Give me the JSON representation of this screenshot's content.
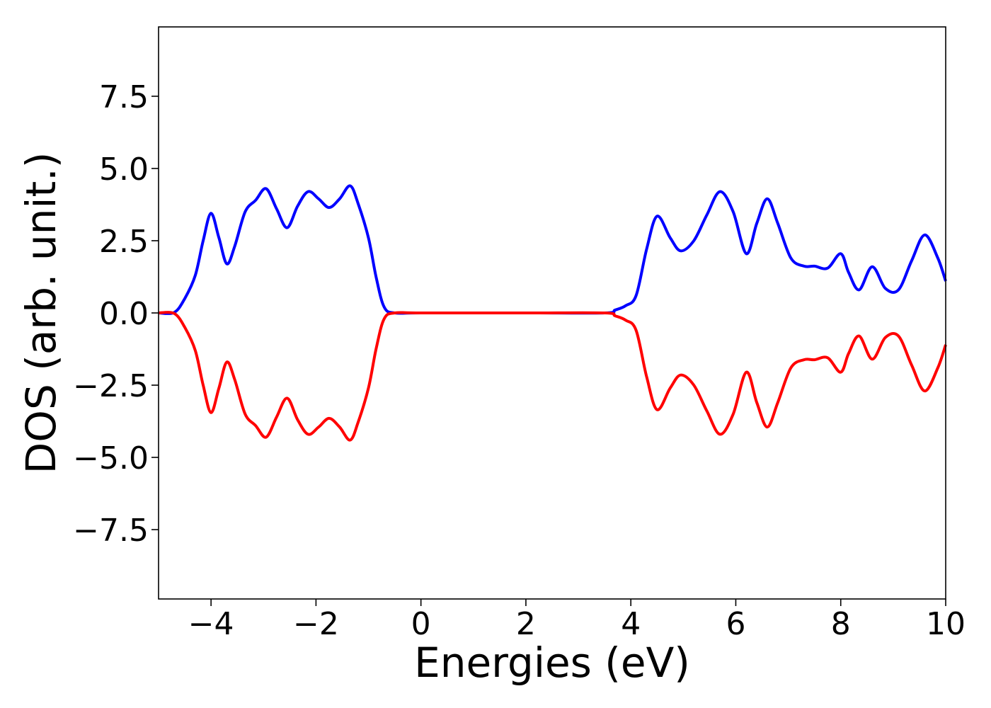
{
  "chart_data": {
    "type": "line",
    "title": "",
    "xlabel": "Energies (eV)",
    "ylabel": "DOS (arb. unit.)",
    "xlim": [
      -5,
      10
    ],
    "ylim": [
      -9.9,
      9.9
    ],
    "x_ticks": [
      -4,
      -2,
      0,
      2,
      4,
      6,
      8,
      10
    ],
    "x_tick_labels": [
      "−4",
      "−2",
      "0",
      "2",
      "4",
      "6",
      "8",
      "10"
    ],
    "y_ticks": [
      -7.5,
      -5.0,
      -2.5,
      0.0,
      2.5,
      5.0,
      7.5
    ],
    "y_tick_labels": [
      "−7.5",
      "−5.0",
      "−2.5",
      "0.0",
      "2.5",
      "5.0",
      "7.5"
    ],
    "grid": false,
    "legend": "none",
    "series": [
      {
        "color": "#0000ff",
        "points": [
          [
            -5.0,
            0.0
          ],
          [
            -4.7,
            0.02
          ],
          [
            -4.5,
            0.5
          ],
          [
            -4.3,
            1.3
          ],
          [
            -4.15,
            2.5
          ],
          [
            -4.0,
            3.45
          ],
          [
            -3.85,
            2.6
          ],
          [
            -3.7,
            1.7
          ],
          [
            -3.55,
            2.3
          ],
          [
            -3.35,
            3.5
          ],
          [
            -3.15,
            3.9
          ],
          [
            -2.95,
            4.3
          ],
          [
            -2.75,
            3.6
          ],
          [
            -2.55,
            2.95
          ],
          [
            -2.35,
            3.7
          ],
          [
            -2.15,
            4.2
          ],
          [
            -1.95,
            3.95
          ],
          [
            -1.75,
            3.65
          ],
          [
            -1.55,
            3.95
          ],
          [
            -1.35,
            4.4
          ],
          [
            -1.2,
            3.8
          ],
          [
            -1.0,
            2.6
          ],
          [
            -0.85,
            1.2
          ],
          [
            -0.7,
            0.2
          ],
          [
            -0.5,
            0.0
          ],
          [
            0.0,
            0.0
          ],
          [
            2.0,
            0.0
          ],
          [
            3.5,
            0.0
          ],
          [
            3.7,
            0.1
          ],
          [
            3.9,
            0.25
          ],
          [
            4.1,
            0.6
          ],
          [
            4.3,
            2.2
          ],
          [
            4.5,
            3.35
          ],
          [
            4.75,
            2.6
          ],
          [
            4.95,
            2.15
          ],
          [
            5.2,
            2.5
          ],
          [
            5.45,
            3.4
          ],
          [
            5.7,
            4.2
          ],
          [
            5.95,
            3.5
          ],
          [
            6.2,
            2.05
          ],
          [
            6.4,
            3.1
          ],
          [
            6.6,
            3.95
          ],
          [
            6.8,
            3.1
          ],
          [
            7.05,
            1.9
          ],
          [
            7.3,
            1.62
          ],
          [
            7.5,
            1.62
          ],
          [
            7.75,
            1.55
          ],
          [
            8.0,
            2.05
          ],
          [
            8.15,
            1.4
          ],
          [
            8.35,
            0.8
          ],
          [
            8.6,
            1.6
          ],
          [
            8.85,
            0.85
          ],
          [
            9.1,
            0.8
          ],
          [
            9.35,
            1.8
          ],
          [
            9.6,
            2.7
          ],
          [
            9.85,
            1.9
          ],
          [
            10.0,
            1.1
          ]
        ]
      },
      {
        "color": "#ff0000",
        "points": [
          [
            -5.0,
            0.0
          ],
          [
            -4.7,
            -0.02
          ],
          [
            -4.5,
            -0.5
          ],
          [
            -4.3,
            -1.3
          ],
          [
            -4.15,
            -2.5
          ],
          [
            -4.0,
            -3.45
          ],
          [
            -3.85,
            -2.6
          ],
          [
            -3.7,
            -1.7
          ],
          [
            -3.55,
            -2.3
          ],
          [
            -3.35,
            -3.5
          ],
          [
            -3.15,
            -3.9
          ],
          [
            -2.95,
            -4.3
          ],
          [
            -2.75,
            -3.6
          ],
          [
            -2.55,
            -2.95
          ],
          [
            -2.35,
            -3.7
          ],
          [
            -2.15,
            -4.2
          ],
          [
            -1.95,
            -3.95
          ],
          [
            -1.75,
            -3.65
          ],
          [
            -1.55,
            -3.95
          ],
          [
            -1.35,
            -4.4
          ],
          [
            -1.2,
            -3.8
          ],
          [
            -1.0,
            -2.6
          ],
          [
            -0.85,
            -1.2
          ],
          [
            -0.7,
            -0.2
          ],
          [
            -0.5,
            0.0
          ],
          [
            0.0,
            0.0
          ],
          [
            2.0,
            0.0
          ],
          [
            3.5,
            0.0
          ],
          [
            3.7,
            -0.1
          ],
          [
            3.9,
            -0.25
          ],
          [
            4.1,
            -0.6
          ],
          [
            4.3,
            -2.2
          ],
          [
            4.5,
            -3.35
          ],
          [
            4.75,
            -2.6
          ],
          [
            4.95,
            -2.15
          ],
          [
            5.2,
            -2.5
          ],
          [
            5.45,
            -3.4
          ],
          [
            5.7,
            -4.2
          ],
          [
            5.95,
            -3.5
          ],
          [
            6.2,
            -2.05
          ],
          [
            6.4,
            -3.1
          ],
          [
            6.6,
            -3.95
          ],
          [
            6.8,
            -3.1
          ],
          [
            7.05,
            -1.9
          ],
          [
            7.3,
            -1.62
          ],
          [
            7.5,
            -1.62
          ],
          [
            7.75,
            -1.55
          ],
          [
            8.0,
            -2.05
          ],
          [
            8.15,
            -1.4
          ],
          [
            8.35,
            -0.8
          ],
          [
            8.6,
            -1.6
          ],
          [
            8.85,
            -0.85
          ],
          [
            9.1,
            -0.8
          ],
          [
            9.35,
            -1.8
          ],
          [
            9.6,
            -2.7
          ],
          [
            9.85,
            -1.9
          ],
          [
            10.0,
            -1.1
          ]
        ]
      }
    ]
  }
}
